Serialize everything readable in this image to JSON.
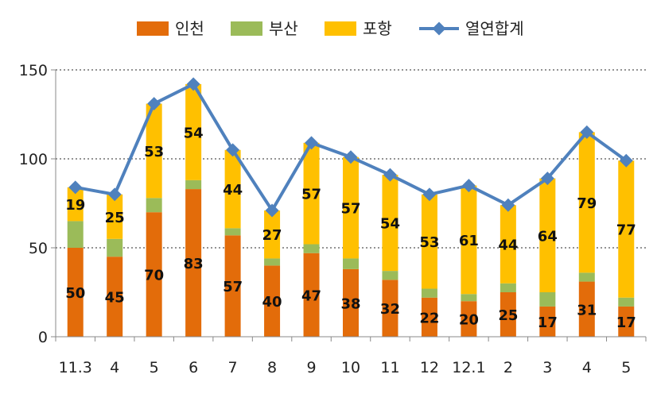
{
  "chart_data": {
    "type": "bar",
    "stacked": true,
    "title": "",
    "xlabel": "",
    "ylabel": "",
    "ylim": [
      0,
      150
    ],
    "yticks": [
      0,
      50,
      100,
      150
    ],
    "grid": "horizontal-dotted",
    "legend_position": "top",
    "categories": [
      "11.3",
      "4",
      "5",
      "6",
      "7",
      "8",
      "9",
      "10",
      "11",
      "12",
      "12.1",
      "2",
      "3",
      "4",
      "5"
    ],
    "series": [
      {
        "name": "인천",
        "kind": "bar",
        "color": "#E36C0A",
        "values": [
          50,
          45,
          70,
          83,
          57,
          40,
          47,
          38,
          32,
          22,
          20,
          25,
          17,
          31,
          17
        ]
      },
      {
        "name": "부산",
        "kind": "bar",
        "color": "#9BBB59",
        "values": [
          15,
          10,
          8,
          5,
          4,
          4,
          5,
          6,
          5,
          5,
          4,
          5,
          8,
          5,
          5
        ]
      },
      {
        "name": "포항",
        "kind": "bar",
        "color": "#FFC000",
        "values": [
          19,
          25,
          53,
          54,
          44,
          27,
          57,
          57,
          54,
          53,
          61,
          44,
          64,
          79,
          77
        ]
      },
      {
        "name": "열연합계",
        "kind": "line",
        "color": "#4F81BD",
        "values": [
          84,
          80,
          131,
          142,
          105,
          71,
          109,
          101,
          91,
          80,
          85,
          74,
          89,
          115,
          99
        ]
      }
    ],
    "data_labels": {
      "인천": [
        50,
        45,
        70,
        83,
        57,
        40,
        47,
        38,
        32,
        22,
        20,
        25,
        17,
        31,
        17
      ],
      "포항": [
        19,
        25,
        53,
        54,
        44,
        27,
        57,
        57,
        54,
        53,
        61,
        44,
        64,
        79,
        77
      ]
    }
  }
}
